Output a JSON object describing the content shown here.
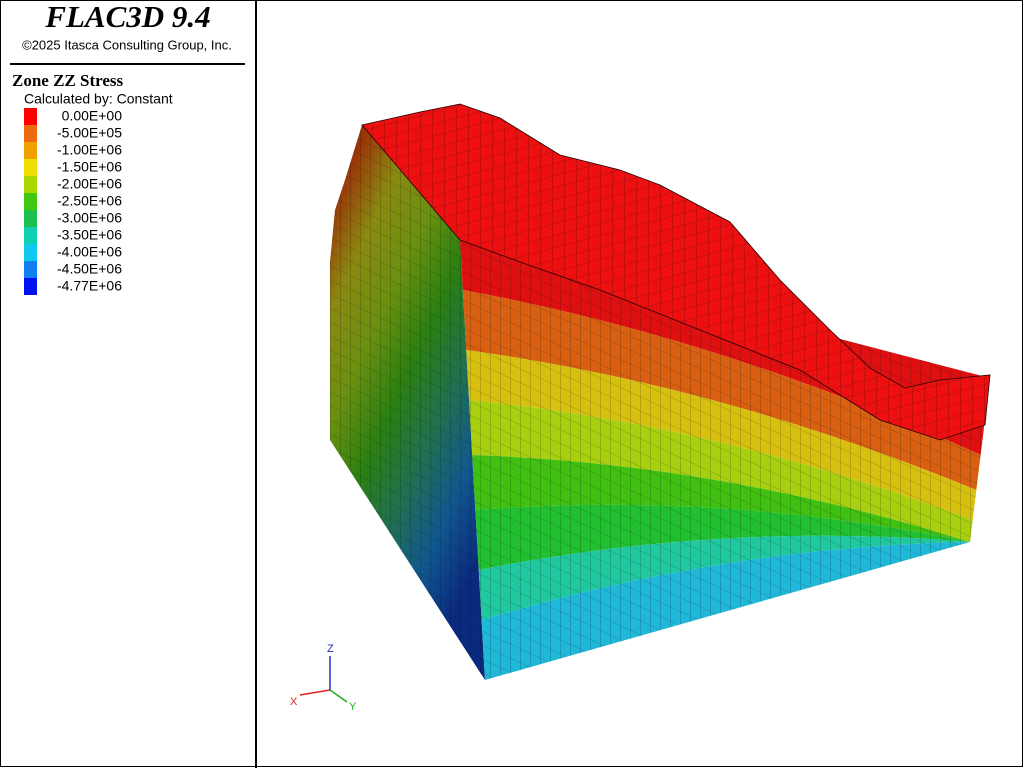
{
  "header": {
    "title": "FLAC3D 9.4",
    "copyright": "©2025 Itasca Consulting Group, Inc."
  },
  "legend": {
    "title": "Zone ZZ Stress",
    "subtitle": "Calculated by: Constant",
    "entries": [
      {
        "label": "0.00E+00",
        "color": "#ff0000"
      },
      {
        "label": "-5.00E+05",
        "color": "#ee6a10"
      },
      {
        "label": "-1.00E+06",
        "color": "#f0a000"
      },
      {
        "label": "-1.50E+06",
        "color": "#f0e000"
      },
      {
        "label": "-2.00E+06",
        "color": "#a8d800"
      },
      {
        "label": "-2.50E+06",
        "color": "#40c810"
      },
      {
        "label": "-3.00E+06",
        "color": "#20c050"
      },
      {
        "label": "-3.50E+06",
        "color": "#10d0b0"
      },
      {
        "label": "-4.00E+06",
        "color": "#10c8f0"
      },
      {
        "label": "-4.50E+06",
        "color": "#1080f0"
      },
      {
        "label": "-4.77E+06",
        "color": "#0010f0"
      }
    ]
  },
  "axes": {
    "x": "X",
    "y": "Y",
    "z": "Z"
  }
}
